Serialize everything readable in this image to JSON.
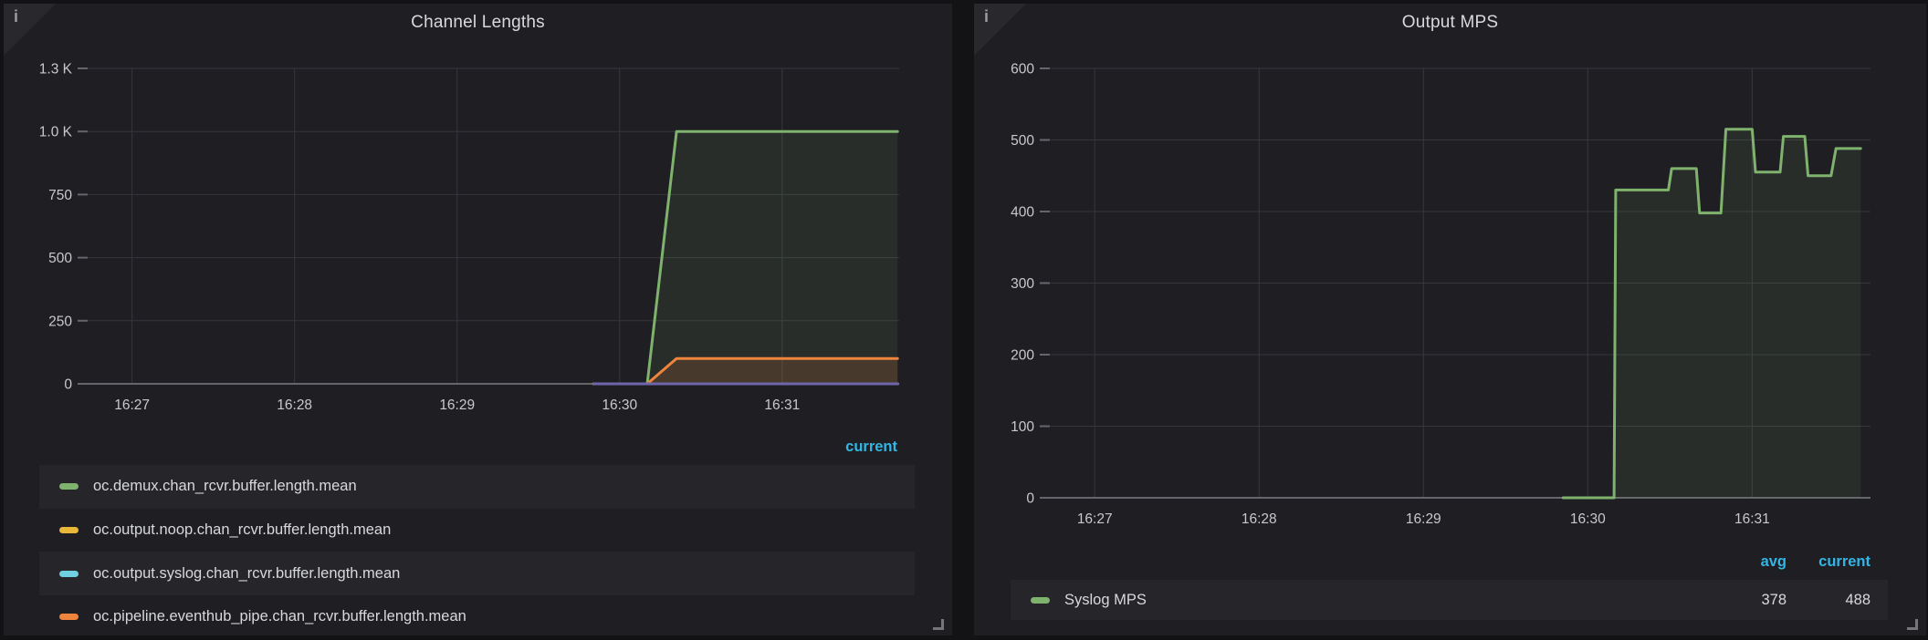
{
  "colors": {
    "legend_header_blue": "#33B5E5",
    "panel_background": "#1f1f23",
    "page_background": "#131316",
    "grid": "#36363c",
    "axis": "#65656c",
    "text": "#d8d9da",
    "series_green": "#7EB26D",
    "series_yellow": "#EAB839",
    "series_light_blue": "#6ED0E0",
    "series_orange": "#EF843C",
    "series_purple": "#6E65AC"
  },
  "panels": [
    {
      "title": "Channel Lengths",
      "info_icon": "i",
      "legend": {
        "columns": [
          "current"
        ],
        "items": [
          {
            "label": "oc.demux.chan_rcvr.buffer.length.mean",
            "color": "#7EB26D",
            "values": {}
          },
          {
            "label": "oc.output.noop.chan_rcvr.buffer.length.mean",
            "color": "#EAB839",
            "values": {}
          },
          {
            "label": "oc.output.syslog.chan_rcvr.buffer.length.mean",
            "color": "#6ED0E0",
            "values": {}
          },
          {
            "label": "oc.pipeline.eventhub_pipe.chan_rcvr.buffer.length.mean",
            "color": "#EF843C",
            "values": {}
          }
        ]
      }
    },
    {
      "title": "Output MPS",
      "info_icon": "i",
      "legend": {
        "columns": [
          "avg",
          "current"
        ],
        "items": [
          {
            "label": "Syslog MPS",
            "color": "#7EB26D",
            "values": {
              "avg": "378",
              "current": "488"
            }
          }
        ]
      }
    }
  ],
  "chart_data": [
    {
      "type": "area",
      "title": "Channel Lengths",
      "xlabel": "",
      "ylabel": "",
      "xlim": [
        -0.29,
        4.72
      ],
      "ylim": [
        0,
        1250
      ],
      "x_tick_positions": [
        0,
        1,
        2,
        3,
        4
      ],
      "x_tick_labels": [
        "16:27",
        "16:28",
        "16:29",
        "16:30",
        "16:31"
      ],
      "y_tick_values": [
        1250,
        1000,
        750,
        500,
        250,
        0
      ],
      "y_tick_labels": [
        "1.3 K",
        "1.0 K",
        "750",
        "500",
        "250",
        "0"
      ],
      "grid": true,
      "legend_position": "bottom-table",
      "x_unit_note": "minutes after 16:27, data spans 16:29:50 to 16:31:40",
      "series": [
        {
          "name": "oc.demux.chan_rcvr.buffer.length.mean",
          "color": "#7EB26D",
          "fill_opacity": 0.1,
          "points": [
            [
              2.84,
              0
            ],
            [
              3.17,
              0
            ],
            [
              3.35,
              1000
            ],
            [
              4.71,
              1000
            ]
          ]
        },
        {
          "name": "oc.output.noop.chan_rcvr.buffer.length.mean",
          "color": "#EAB839",
          "fill_opacity": 0,
          "points": [
            [
              2.84,
              0
            ],
            [
              4.71,
              0
            ]
          ]
        },
        {
          "name": "oc.output.syslog.chan_rcvr.buffer.length.mean",
          "color": "#6ED0E0",
          "fill_opacity": 0,
          "points": [
            [
              2.84,
              0
            ],
            [
              4.71,
              0
            ]
          ]
        },
        {
          "name": "oc.pipeline.eventhub_pipe.chan_rcvr.buffer.length.mean",
          "color": "#EF843C",
          "fill_opacity": 0.16,
          "points": [
            [
              2.84,
              0
            ],
            [
              3.17,
              0
            ],
            [
              3.35,
              100
            ],
            [
              4.71,
              100
            ]
          ]
        },
        {
          "name": "",
          "note": "legend entry scrolled out of clipped legend",
          "color": "#6E65AC",
          "fill_opacity": 0,
          "points": [
            [
              2.84,
              0
            ],
            [
              4.71,
              0
            ]
          ]
        }
      ]
    },
    {
      "type": "area",
      "title": "Output MPS",
      "xlabel": "",
      "ylabel": "",
      "xlim": [
        -0.29,
        4.72
      ],
      "ylim": [
        0,
        600
      ],
      "x_tick_positions": [
        0,
        1,
        2,
        3,
        4
      ],
      "x_tick_labels": [
        "16:27",
        "16:28",
        "16:29",
        "16:30",
        "16:31"
      ],
      "y_tick_values": [
        600,
        500,
        400,
        300,
        200,
        100,
        0
      ],
      "y_tick_labels": [
        "600",
        "500",
        "400",
        "300",
        "200",
        "100",
        "0"
      ],
      "grid": true,
      "legend_position": "bottom-table",
      "stats": {
        "avg": 378,
        "current": 488
      },
      "series": [
        {
          "name": "Syslog MPS",
          "color": "#7EB26D",
          "fill_opacity": 0.1,
          "points": [
            [
              2.85,
              0
            ],
            [
              3.16,
              0
            ],
            [
              3.17,
              430
            ],
            [
              3.49,
              430
            ],
            [
              3.51,
              460
            ],
            [
              3.66,
              460
            ],
            [
              3.68,
              398
            ],
            [
              3.81,
              398
            ],
            [
              3.84,
              515
            ],
            [
              4.0,
              515
            ],
            [
              4.02,
              455
            ],
            [
              4.17,
              455
            ],
            [
              4.19,
              505
            ],
            [
              4.32,
              505
            ],
            [
              4.34,
              450
            ],
            [
              4.48,
              450
            ],
            [
              4.51,
              488
            ],
            [
              4.66,
              488
            ]
          ]
        }
      ]
    }
  ]
}
